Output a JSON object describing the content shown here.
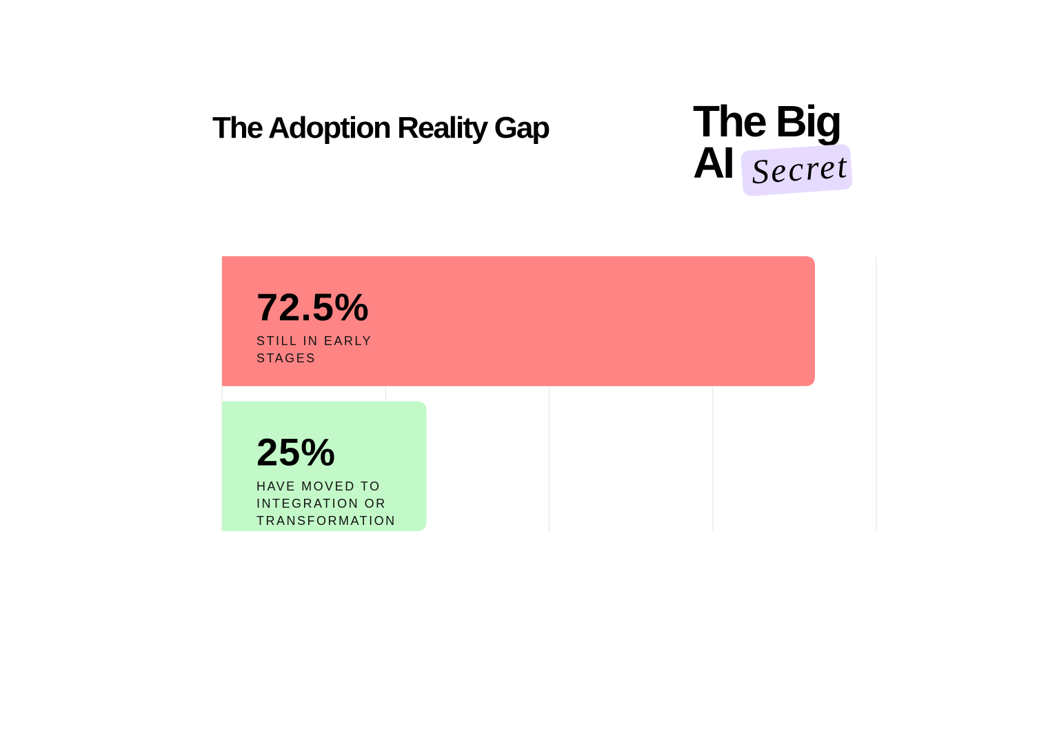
{
  "chart_data": {
    "type": "bar",
    "orientation": "horizontal",
    "title": "The Adoption Reality Gap",
    "categories": [
      "STILL IN EARLY STAGES",
      "HAVE MOVED TO INTEGRATION OR TRANSFORMATION"
    ],
    "values": [
      72.5,
      25
    ],
    "value_labels": [
      "72.5%",
      "25%"
    ],
    "colors": [
      "#ff8585",
      "#c3f9c8"
    ],
    "xlim": [
      0,
      80
    ],
    "xticks": [
      0,
      20,
      40,
      60,
      80
    ],
    "grid": true
  },
  "logo": {
    "line1": "The Big",
    "line2": "AI",
    "accent": "Secret"
  }
}
